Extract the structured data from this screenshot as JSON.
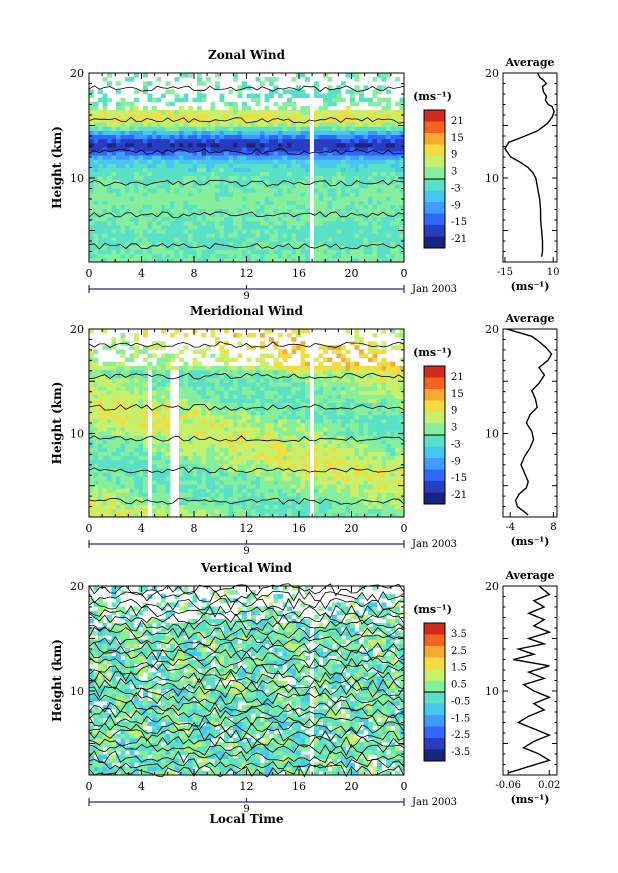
{
  "chart_data": [
    {
      "type": "heatmap",
      "title": "Zonal Wind",
      "ylabel": "Height (km)",
      "xlim": [
        0,
        24
      ],
      "ylim": [
        2,
        20
      ],
      "x_ticks": [
        "0",
        "4",
        "8",
        "12",
        "16",
        "20",
        "0"
      ],
      "y_ticks": [
        "20",
        "10"
      ],
      "date_tick": "9",
      "date_label": "Jan 2003",
      "colorbar": {
        "unit": "(ms⁻¹)",
        "labels": [
          "21",
          "15",
          "9",
          "3",
          "-3",
          "-9",
          "-15",
          "-21"
        ],
        "range": [
          -24,
          24
        ]
      },
      "profile": {
        "title": "Average",
        "xlabel": "(ms⁻¹)",
        "x_ticks": [
          "-15",
          "10"
        ],
        "y_ticks": [
          "20",
          "10"
        ],
        "xlim": [
          -16,
          12
        ],
        "ylim": [
          2,
          20
        ],
        "points": [
          [
            4.0,
            2.5
          ],
          [
            4.5,
            3.0
          ],
          [
            4.5,
            4.0
          ],
          [
            4.0,
            5.0
          ],
          [
            3.5,
            6.0
          ],
          [
            3.5,
            7.0
          ],
          [
            3.0,
            8.0
          ],
          [
            2.0,
            9.0
          ],
          [
            1.0,
            10.0
          ],
          [
            -0.5,
            10.5
          ],
          [
            -3.0,
            11.0
          ],
          [
            -7.0,
            11.5
          ],
          [
            -12.0,
            12.0
          ],
          [
            -15.0,
            12.8
          ],
          [
            -13.0,
            13.4
          ],
          [
            -6.0,
            13.9
          ],
          [
            2.0,
            14.5
          ],
          [
            7.0,
            15.2
          ],
          [
            9.5,
            15.8
          ],
          [
            10.5,
            16.3
          ],
          [
            9.5,
            16.8
          ],
          [
            7.5,
            17.0
          ],
          [
            6.0,
            17.4
          ],
          [
            6.5,
            17.8
          ],
          [
            5.0,
            18.2
          ],
          [
            4.5,
            18.7
          ],
          [
            6.5,
            19.0
          ],
          [
            5.0,
            19.3
          ],
          [
            3.0,
            19.6
          ],
          [
            2.0,
            20.0
          ]
        ]
      }
    },
    {
      "type": "heatmap",
      "title": "Meridional Wind",
      "ylabel": "Height (km)",
      "xlim": [
        0,
        24
      ],
      "ylim": [
        2,
        20
      ],
      "x_ticks": [
        "0",
        "4",
        "8",
        "12",
        "16",
        "20",
        "0"
      ],
      "y_ticks": [
        "20",
        "10"
      ],
      "date_tick": "9",
      "date_label": "Jan 2003",
      "colorbar": {
        "unit": "(ms⁻¹)",
        "labels": [
          "21",
          "15",
          "9",
          "3",
          "-3",
          "-9",
          "-15",
          "-21"
        ],
        "range": [
          -24,
          24
        ]
      },
      "profile": {
        "title": "Average",
        "xlabel": "(ms⁻¹)",
        "x_ticks": [
          "-4",
          "8"
        ],
        "y_ticks": [
          "20",
          "10"
        ],
        "xlim": [
          -6,
          9
        ],
        "ylim": [
          2,
          20
        ],
        "points": [
          [
            1.0,
            2.2
          ],
          [
            -0.5,
            2.6
          ],
          [
            -2.0,
            3.0
          ],
          [
            -2.5,
            3.6
          ],
          [
            -1.5,
            4.2
          ],
          [
            0.5,
            4.8
          ],
          [
            1.0,
            5.4
          ],
          [
            0.0,
            6.2
          ],
          [
            -1.0,
            7.0
          ],
          [
            0.0,
            7.8
          ],
          [
            1.5,
            8.6
          ],
          [
            2.5,
            9.4
          ],
          [
            2.0,
            10.2
          ],
          [
            0.5,
            11.0
          ],
          [
            1.5,
            11.8
          ],
          [
            3.5,
            12.5
          ],
          [
            3.0,
            13.3
          ],
          [
            2.0,
            14.1
          ],
          [
            4.0,
            14.8
          ],
          [
            5.5,
            15.6
          ],
          [
            4.0,
            16.3
          ],
          [
            6.5,
            17.0
          ],
          [
            7.5,
            17.6
          ],
          [
            6.0,
            18.2
          ],
          [
            4.0,
            18.8
          ],
          [
            2.0,
            19.3
          ],
          [
            -1.0,
            19.6
          ],
          [
            -3.0,
            19.8
          ],
          [
            -5.0,
            20.0
          ]
        ]
      }
    },
    {
      "type": "heatmap",
      "title": "Vertical Wind",
      "ylabel": "Height (km)",
      "xlabel": "Local Time",
      "xlim": [
        0,
        24
      ],
      "ylim": [
        2,
        20
      ],
      "x_ticks": [
        "0",
        "4",
        "8",
        "12",
        "16",
        "20",
        "0"
      ],
      "y_ticks": [
        "20",
        "10"
      ],
      "date_tick": "9",
      "date_label": "Jan 2003",
      "colorbar": {
        "unit": "(ms⁻¹)",
        "labels": [
          "3.5",
          "2.5",
          "1.5",
          "0.5",
          "-0.5",
          "-1.5",
          "-2.5",
          "-3.5"
        ],
        "range": [
          -4,
          4
        ]
      },
      "profile": {
        "title": "Average",
        "xlabel": "(ms⁻¹)",
        "x_ticks": [
          "-0.06",
          "0.02"
        ],
        "y_ticks": [
          "20",
          "10"
        ],
        "xlim": [
          -0.07,
          0.035
        ],
        "ylim": [
          2,
          20
        ],
        "points": [
          [
            -0.06,
            2.2
          ],
          [
            -0.02,
            2.8
          ],
          [
            0.02,
            3.4
          ],
          [
            0.0,
            4.0
          ],
          [
            -0.03,
            4.6
          ],
          [
            -0.01,
            5.2
          ],
          [
            0.02,
            5.8
          ],
          [
            -0.01,
            6.4
          ],
          [
            -0.04,
            7.0
          ],
          [
            -0.02,
            7.6
          ],
          [
            0.01,
            8.2
          ],
          [
            -0.01,
            8.8
          ],
          [
            0.02,
            9.4
          ],
          [
            -0.01,
            10.0
          ],
          [
            -0.03,
            10.6
          ],
          [
            0.01,
            11.2
          ],
          [
            -0.02,
            11.8
          ],
          [
            0.02,
            12.4
          ],
          [
            -0.05,
            13.0
          ],
          [
            -0.01,
            13.5
          ],
          [
            -0.04,
            14.0
          ],
          [
            0.01,
            14.5
          ],
          [
            -0.02,
            15.0
          ],
          [
            0.02,
            15.6
          ],
          [
            -0.01,
            16.2
          ],
          [
            0.01,
            16.8
          ],
          [
            -0.02,
            17.4
          ],
          [
            0.01,
            18.0
          ],
          [
            -0.01,
            18.6
          ],
          [
            0.02,
            19.2
          ],
          [
            0.0,
            20.0
          ]
        ]
      }
    }
  ]
}
